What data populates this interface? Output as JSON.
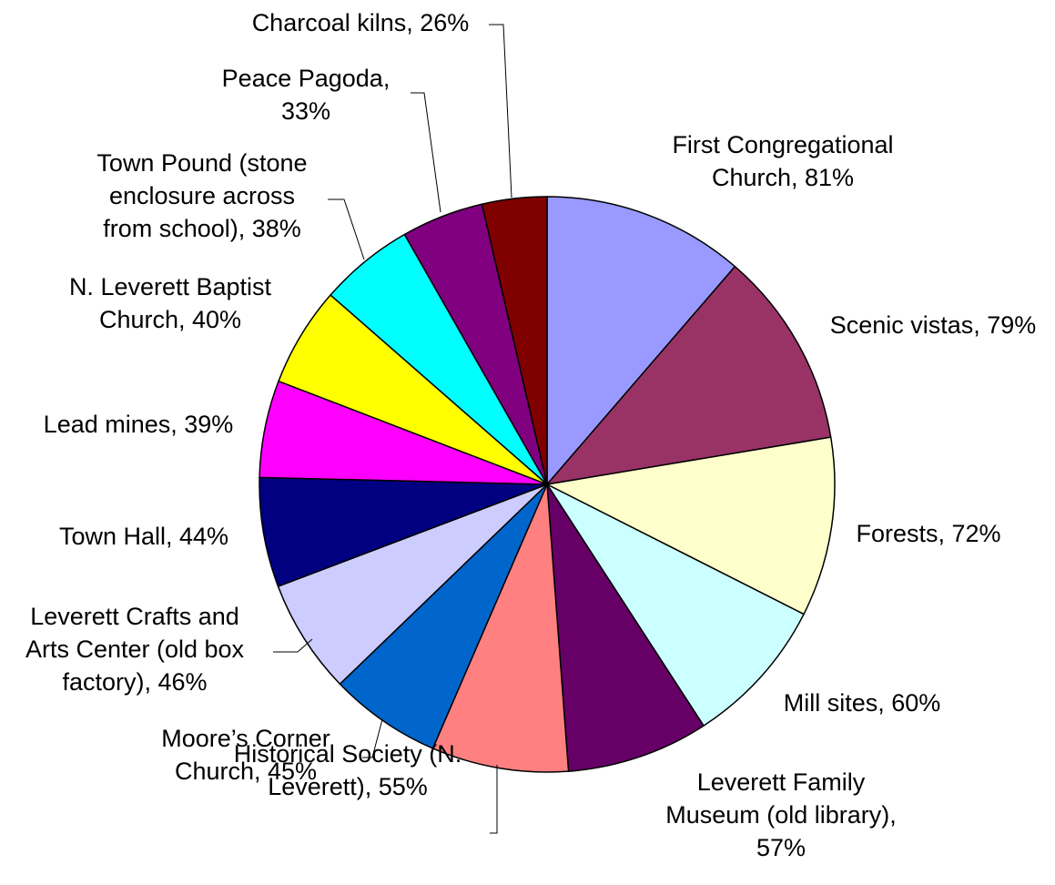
{
  "chart_data": {
    "type": "pie",
    "title": "",
    "start_angle_deg": 0,
    "direction": "clockwise",
    "slices": [
      {
        "label": "First Congregational Church, 81%",
        "value": 81,
        "color": "#9999FF"
      },
      {
        "label": "Scenic vistas, 79%",
        "value": 79,
        "color": "#993366"
      },
      {
        "label": "Forests, 72%",
        "value": 72,
        "color": "#FFFFCC"
      },
      {
        "label": "Mill sites, 60%",
        "value": 60,
        "color": "#CCFFFF"
      },
      {
        "label": "Leverett Family Museum (old library), 57%",
        "value": 57,
        "color": "#660066"
      },
      {
        "label": "Historical Society (N. Leverett), 55%",
        "value": 55,
        "color": "#FF8080"
      },
      {
        "label": "Moore’s Corner Church, 45%",
        "value": 45,
        "color": "#0066CC"
      },
      {
        "label": "Leverett Crafts and Arts Center (old box factory), 46%",
        "value": 46,
        "color": "#CCCCFF"
      },
      {
        "label": "Town Hall, 44%",
        "value": 44,
        "color": "#000080"
      },
      {
        "label": "Lead mines, 39%",
        "value": 39,
        "color": "#FF00FF"
      },
      {
        "label": "N. Leverett Baptist Church, 40%",
        "value": 40,
        "color": "#FFFF00"
      },
      {
        "label": "Town Pound (stone enclosure across from school), 38%",
        "value": 38,
        "color": "#00FFFF"
      },
      {
        "label": "Peace Pagoda, 33%",
        "value": 33,
        "color": "#800080"
      },
      {
        "label": "Charcoal kilns, 26%",
        "value": 26,
        "color": "#800000"
      }
    ]
  }
}
